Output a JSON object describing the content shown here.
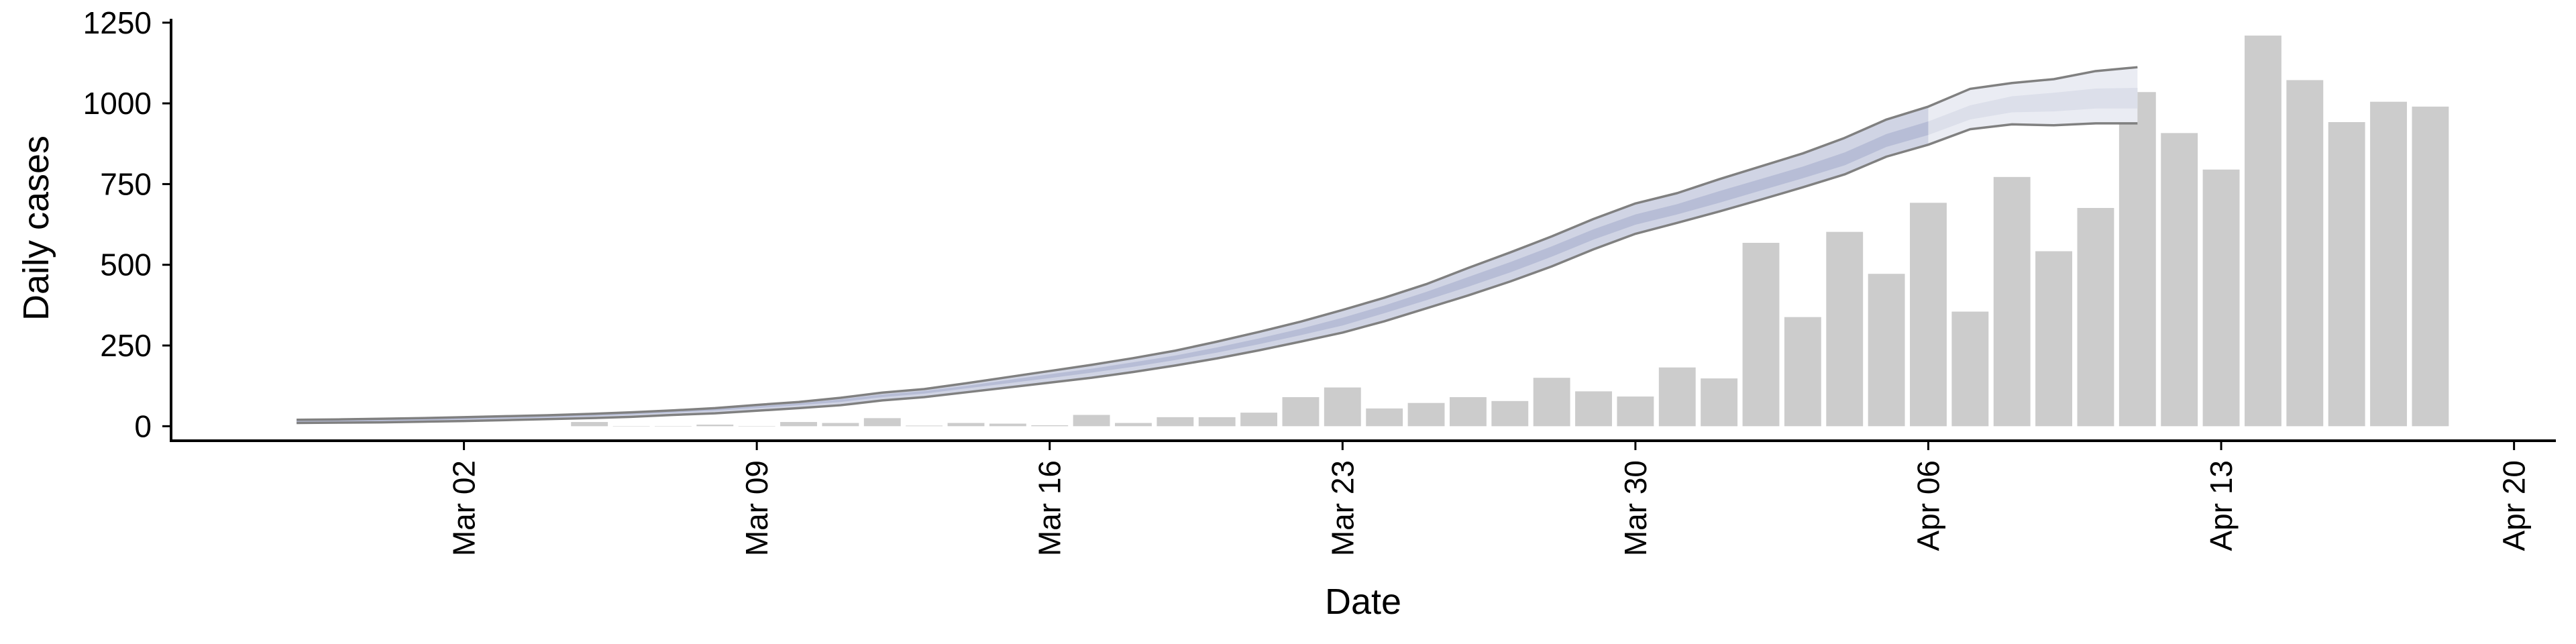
{
  "chart_data": {
    "type": "bar",
    "xlabel": "Date",
    "ylabel": "Daily cases",
    "ylim": [
      -45,
      1262
    ],
    "yticks": [
      0,
      250,
      500,
      750,
      1000,
      1250
    ],
    "xlim": [
      "2020-02-24",
      "2020-04-21"
    ],
    "xticks": [
      {
        "date": "2020-03-02",
        "label": "Mar 02"
      },
      {
        "date": "2020-03-09",
        "label": "Mar 09"
      },
      {
        "date": "2020-03-16",
        "label": "Mar 16"
      },
      {
        "date": "2020-03-23",
        "label": "Mar 23"
      },
      {
        "date": "2020-03-30",
        "label": "Mar 30"
      },
      {
        "date": "2020-04-06",
        "label": "Apr 06"
      },
      {
        "date": "2020-04-13",
        "label": "Apr 13"
      },
      {
        "date": "2020-04-20",
        "label": "Apr 20"
      }
    ],
    "grid": false,
    "colors": {
      "bars": "#cccccc",
      "band_outer": "#d0d4e4",
      "band_inner": "#b7bdd6",
      "band_forecast_outer": "#eaecf3",
      "band_forecast_inner": "#dcdfea",
      "band_edge": "#808080"
    },
    "bars": {
      "name": "Daily cases",
      "start_date": "2020-03-05",
      "values": [
        13,
        0,
        0,
        5,
        0,
        13,
        10,
        25,
        2,
        10,
        8,
        3,
        35,
        10,
        28,
        28,
        42,
        90,
        120,
        55,
        72,
        90,
        78,
        150,
        108,
        92,
        182,
        148,
        568,
        338,
        602,
        472,
        692,
        355,
        772,
        542,
        676,
        1035,
        908,
        795,
        1210,
        1072,
        942,
        1005,
        990
      ]
    },
    "model_band": {
      "start_date": "2020-02-27",
      "forecast_from": "2020-04-06",
      "lower": [
        10,
        11,
        12,
        14,
        16,
        19,
        22,
        25,
        29,
        35,
        40,
        48,
        56,
        65,
        80,
        90,
        105,
        120,
        135,
        150,
        168,
        188,
        210,
        235,
        262,
        290,
        325,
        365,
        405,
        448,
        495,
        548,
        596,
        630,
        665,
        702,
        740,
        780,
        835,
        872,
        920,
        935,
        932,
        938,
        938
      ],
      "q25": [
        13,
        14,
        16,
        18,
        21,
        24,
        27,
        31,
        36,
        42,
        48,
        56,
        65,
        75,
        90,
        101,
        117,
        133,
        149,
        166,
        184,
        205,
        228,
        254,
        282,
        312,
        350,
        390,
        432,
        476,
        525,
        578,
        624,
        656,
        692,
        730,
        768,
        808,
        865,
        902,
        950,
        972,
        975,
        984,
        984
      ],
      "median": [
        15,
        16,
        18,
        20,
        23,
        26,
        29,
        33,
        38,
        44,
        50,
        59,
        68,
        79,
        94,
        105,
        121,
        138,
        155,
        172,
        191,
        212,
        236,
        263,
        292,
        324,
        362,
        403,
        447,
        492,
        541,
        594,
        640,
        672,
        710,
        748,
        786,
        828,
        885,
        923,
        972,
        997,
        1004,
        1015,
        1016
      ],
      "q75": [
        17,
        18,
        20,
        22,
        25,
        28,
        31,
        35,
        40,
        46,
        53,
        62,
        71,
        83,
        98,
        109,
        125,
        143,
        161,
        178,
        198,
        219,
        244,
        272,
        302,
        336,
        374,
        416,
        462,
        508,
        557,
        610,
        656,
        688,
        728,
        766,
        804,
        848,
        905,
        944,
        994,
        1022,
        1033,
        1046,
        1048
      ],
      "upper": [
        20,
        21,
        23,
        25,
        28,
        31,
        34,
        38,
        43,
        49,
        56,
        66,
        75,
        88,
        104,
        115,
        133,
        152,
        171,
        190,
        211,
        234,
        262,
        292,
        324,
        360,
        398,
        440,
        490,
        538,
        588,
        642,
        690,
        722,
        765,
        805,
        845,
        893,
        950,
        990,
        1045,
        1063,
        1075,
        1100,
        1112
      ]
    }
  }
}
